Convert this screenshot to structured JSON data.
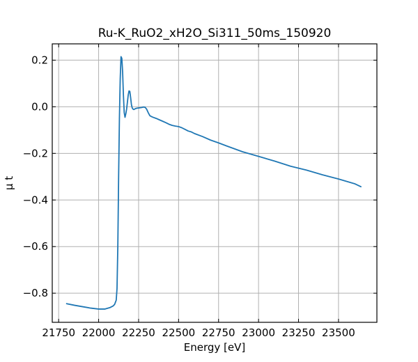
{
  "chart_data": {
    "type": "line",
    "title": "Ru-K_RuO2_xH2O_Si311_50ms_150920",
    "xlabel": "Energy [eV]",
    "ylabel": "μ t",
    "xlim": [
      21710,
      23740
    ],
    "ylim": [
      -0.925,
      0.27
    ],
    "xticks": [
      21750,
      22000,
      22250,
      22500,
      22750,
      23000,
      23250,
      23500
    ],
    "xtick_labels": [
      "21750",
      "22000",
      "22250",
      "22500",
      "22750",
      "23000",
      "23250",
      "23500"
    ],
    "yticks": [
      -0.8,
      -0.6,
      -0.4,
      -0.2,
      0.0,
      0.2
    ],
    "ytick_labels": [
      "−0.8",
      "−0.6",
      "−0.4",
      "−0.2",
      "0.0",
      "0.2"
    ],
    "grid": true,
    "series": [
      {
        "color": "#1f77b4",
        "x": [
          21800,
          21850,
          21900,
          21950,
          22000,
          22040,
          22070,
          22090,
          22100,
          22110,
          22115,
          22120,
          22125,
          22130,
          22135,
          22140,
          22145,
          22150,
          22155,
          22160,
          22165,
          22170,
          22175,
          22180,
          22185,
          22190,
          22195,
          22200,
          22205,
          22210,
          22215,
          22220,
          22225,
          22230,
          22240,
          22250,
          22260,
          22270,
          22280,
          22290,
          22300,
          22310,
          22320,
          22330,
          22340,
          22360,
          22380,
          22400,
          22420,
          22440,
          22460,
          22480,
          22500,
          22520,
          22540,
          22560,
          22580,
          22600,
          22650,
          22700,
          22750,
          22800,
          22900,
          23000,
          23100,
          23200,
          23300,
          23400,
          23500,
          23600,
          23640
        ],
        "y": [
          -0.845,
          -0.852,
          -0.858,
          -0.864,
          -0.868,
          -0.868,
          -0.862,
          -0.855,
          -0.848,
          -0.83,
          -0.78,
          -0.6,
          -0.3,
          -0.05,
          0.12,
          0.215,
          0.208,
          0.15,
          0.05,
          -0.025,
          -0.045,
          -0.03,
          -0.01,
          0.02,
          0.05,
          0.068,
          0.066,
          0.04,
          0.01,
          -0.005,
          -0.01,
          -0.012,
          -0.01,
          -0.008,
          -0.006,
          -0.005,
          -0.004,
          -0.003,
          -0.001,
          -0.002,
          -0.01,
          -0.025,
          -0.038,
          -0.042,
          -0.045,
          -0.05,
          -0.056,
          -0.062,
          -0.068,
          -0.075,
          -0.08,
          -0.083,
          -0.085,
          -0.09,
          -0.097,
          -0.104,
          -0.108,
          -0.115,
          -0.128,
          -0.143,
          -0.155,
          -0.168,
          -0.193,
          -0.213,
          -0.233,
          -0.255,
          -0.272,
          -0.292,
          -0.31,
          -0.33,
          -0.343
        ]
      }
    ]
  }
}
